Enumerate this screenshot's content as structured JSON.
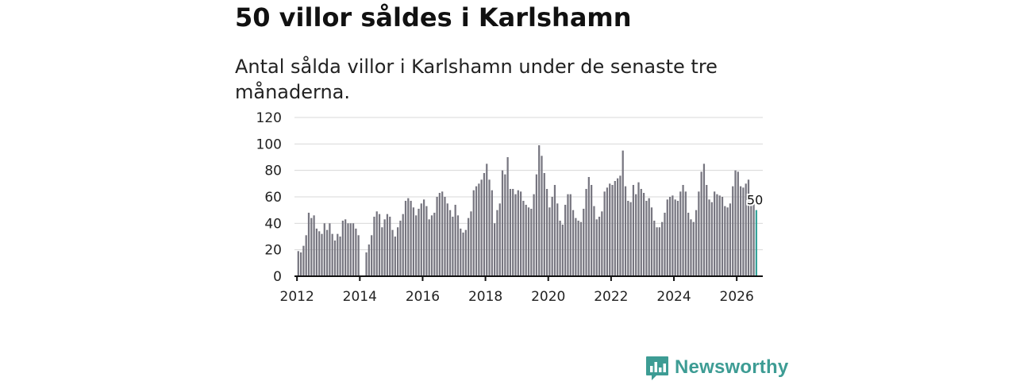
{
  "header": {
    "title": "50 villor såldes i Karlshamn",
    "subtitle": "Antal sålda villor i Karlshamn under de senaste tre månaderna."
  },
  "brand": {
    "name": "Newsworthy",
    "color": "#3d9c94",
    "icon": "bar-chart-logo-icon"
  },
  "colors": {
    "bar": "#777680",
    "highlight": "#35a39a",
    "grid": "#d8d8d8",
    "axis": "#111111"
  },
  "chart_data": {
    "type": "bar",
    "title": "50 villor såldes i Karlshamn",
    "subtitle": "Antal sålda villor i Karlshamn under de senaste tre månaderna.",
    "xlabel": "",
    "ylabel": "",
    "ylim": [
      0,
      120
    ],
    "yticks": [
      0,
      20,
      40,
      60,
      80,
      100,
      120
    ],
    "xlim": [
      2011.92,
      2026.83
    ],
    "xticks": [
      "2012",
      "2014",
      "2016",
      "2018",
      "2020",
      "2022",
      "2024",
      "2026"
    ],
    "grid": true,
    "legend": "none",
    "start": "2012-01",
    "gap_months": [
      "2013-12",
      "2014-01"
    ],
    "values": [
      19,
      18,
      23,
      31,
      48,
      44,
      46,
      36,
      34,
      32,
      40,
      35,
      40,
      32,
      27,
      32,
      30,
      42,
      43,
      40,
      40,
      40,
      36,
      31,
      null,
      null,
      18,
      24,
      31,
      45,
      49,
      47,
      37,
      43,
      47,
      45,
      35,
      30,
      37,
      42,
      47,
      57,
      59,
      57,
      52,
      46,
      51,
      55,
      58,
      53,
      43,
      46,
      48,
      60,
      63,
      64,
      60,
      55,
      50,
      45,
      54,
      46,
      36,
      33,
      35,
      44,
      49,
      65,
      68,
      70,
      73,
      78,
      85,
      73,
      65,
      40,
      50,
      55,
      80,
      77,
      90,
      66,
      66,
      62,
      65,
      64,
      57,
      54,
      52,
      51,
      62,
      77,
      99,
      91,
      78,
      66,
      52,
      60,
      69,
      55,
      42,
      39,
      54,
      62,
      62,
      50,
      44,
      42,
      41,
      51,
      66,
      75,
      69,
      53,
      43,
      45,
      49,
      64,
      67,
      70,
      69,
      72,
      74,
      76,
      95,
      68,
      57,
      56,
      69,
      62,
      71,
      66,
      63,
      57,
      59,
      52,
      42,
      37,
      37,
      41,
      48,
      58,
      60,
      61,
      58,
      57,
      64,
      69,
      64,
      48,
      43,
      41,
      50,
      64,
      79,
      85,
      69,
      58,
      56,
      64,
      62,
      61,
      60,
      53,
      52,
      55,
      68,
      80,
      79,
      68,
      67,
      70,
      73,
      55,
      55,
      50
    ],
    "last_label": "50"
  }
}
